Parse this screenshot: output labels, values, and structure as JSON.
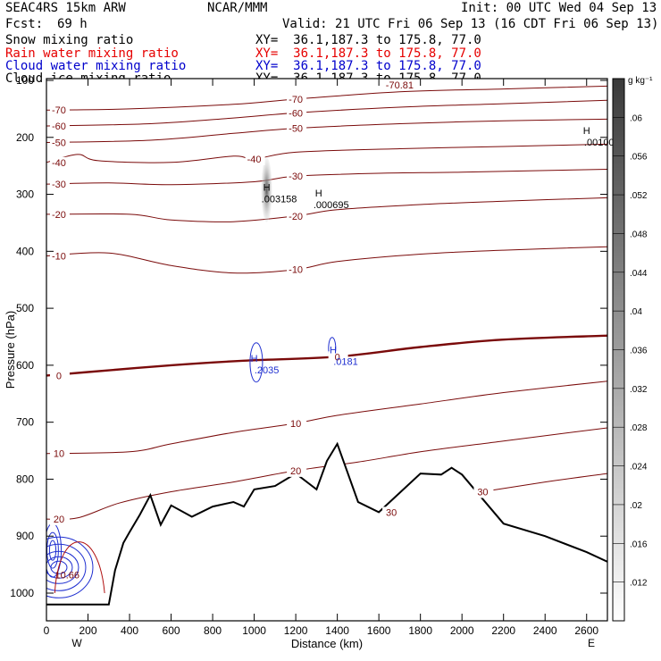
{
  "header": {
    "model": "SEAC4RS 15km ARW",
    "institution": "NCAR/MMM",
    "init": "Init: 00 UTC Wed 04 Sep 13",
    "fcst_label": "Fcst:",
    "fcst_value": "69 h",
    "valid": "Valid: 21 UTC Fri 06 Sep 13 (16 CDT Fri 06 Sep 13)"
  },
  "fields": [
    {
      "name": "Snow mixing ratio",
      "xy": "XY=  36.1,187.3 to 175.8, 77.0",
      "color": "#000000"
    },
    {
      "name": "Rain water mixing ratio",
      "xy": "XY=  36.1,187.3 to 175.8, 77.0",
      "color": "#e60000"
    },
    {
      "name": "Cloud water mixing ratio",
      "xy": "XY=  36.1,187.3 to 175.8, 77.0",
      "color": "#0000cc"
    },
    {
      "name": "Cloud ice mixing ratio",
      "xy": "XY=  36.1,187.3 to 175.8, 77.0",
      "color": "#000000"
    }
  ],
  "colors": {
    "isotherm": "#7a0a0a",
    "cloud_water": "#1f2fd0",
    "terrain": "#000000",
    "rain": "#b01010"
  },
  "chart_data": {
    "type": "contour",
    "xlabel": "Distance (km)",
    "ylabel": "Pressure (hPa)",
    "xlim": [
      0,
      2700
    ],
    "ylim": [
      1000,
      100
    ],
    "x_ticks": [
      "0",
      "200",
      "400",
      "600",
      "800",
      "1000",
      "1200",
      "1400",
      "1600",
      "1800",
      "2000",
      "2200",
      "2400",
      "2600"
    ],
    "y_ticks": [
      "100",
      "200",
      "300",
      "400",
      "500",
      "600",
      "700",
      "800",
      "900",
      "1000"
    ],
    "x_end_labels": {
      "left": "W",
      "right": "E"
    },
    "colorbar": {
      "unit": "g kg⁻¹",
      "labels": [
        ".06",
        ".056",
        ".052",
        ".048",
        ".044",
        ".04",
        ".036",
        ".032",
        ".028",
        ".024",
        ".02",
        ".016",
        ".012"
      ]
    },
    "temperature_contours": [
      {
        "level": -70,
        "p": [
          [
            0,
            152
          ],
          [
            400,
            150
          ],
          [
            900,
            142
          ],
          [
            1200,
            133
          ],
          [
            1700,
            120
          ],
          [
            2200,
            115
          ],
          [
            2700,
            110
          ]
        ]
      },
      {
        "level": -60,
        "p": [
          [
            0,
            180
          ],
          [
            500,
            176
          ],
          [
            900,
            166
          ],
          [
            1200,
            157
          ],
          [
            1700,
            147
          ],
          [
            2200,
            141
          ],
          [
            2700,
            135
          ]
        ]
      },
      {
        "level": -50,
        "p": [
          [
            0,
            209
          ],
          [
            500,
            205
          ],
          [
            900,
            193
          ],
          [
            1200,
            184
          ],
          [
            1700,
            176
          ],
          [
            2200,
            171
          ],
          [
            2700,
            168
          ]
        ]
      },
      {
        "level": -40,
        "p": [
          [
            0,
            244
          ],
          [
            150,
            230
          ],
          [
            250,
            241
          ],
          [
            600,
            244
          ],
          [
            900,
            233
          ],
          [
            1000,
            238
          ],
          [
            1200,
            226
          ],
          [
            1700,
            220
          ],
          [
            2200,
            216
          ],
          [
            2700,
            212
          ]
        ]
      },
      {
        "level": -30,
        "p": [
          [
            0,
            282
          ],
          [
            300,
            280
          ],
          [
            600,
            283
          ],
          [
            1000,
            278
          ],
          [
            1200,
            268
          ],
          [
            1600,
            263
          ],
          [
            2000,
            261
          ],
          [
            2700,
            256
          ]
        ]
      },
      {
        "level": -20,
        "p": [
          [
            0,
            335
          ],
          [
            400,
            335
          ],
          [
            600,
            345
          ],
          [
            900,
            348
          ],
          [
            1200,
            338
          ],
          [
            1400,
            327
          ],
          [
            1800,
            318
          ],
          [
            2200,
            312
          ],
          [
            2700,
            306
          ]
        ]
      },
      {
        "level": -10,
        "p": [
          [
            0,
            408
          ],
          [
            300,
            403
          ],
          [
            600,
            425
          ],
          [
            900,
            438
          ],
          [
            1200,
            432
          ],
          [
            1400,
            418
          ],
          [
            1800,
            405
          ],
          [
            2200,
            398
          ],
          [
            2700,
            392
          ]
        ]
      },
      {
        "level": 0,
        "p": [
          [
            0,
            618
          ],
          [
            200,
            612
          ],
          [
            600,
            600
          ],
          [
            950,
            592
          ],
          [
            1400,
            585
          ],
          [
            1800,
            568
          ],
          [
            2200,
            555
          ],
          [
            2700,
            548
          ]
        ]
      },
      {
        "level": 10,
        "p": [
          [
            0,
            755
          ],
          [
            400,
            752
          ],
          [
            600,
            738
          ],
          [
            900,
            718
          ],
          [
            1200,
            702
          ],
          [
            1400,
            688
          ],
          [
            1800,
            668
          ],
          [
            2200,
            648
          ],
          [
            2700,
            628
          ]
        ]
      },
      {
        "level": 20,
        "p": [
          [
            0,
            870
          ],
          [
            150,
            868
          ],
          [
            350,
            842
          ],
          [
            600,
            822
          ],
          [
            900,
            805
          ],
          [
            1200,
            785
          ],
          [
            1500,
            770
          ],
          [
            1800,
            752
          ],
          [
            2200,
            733
          ],
          [
            2700,
            710
          ]
        ]
      },
      {
        "level": 30,
        "p": [
          [
            1600,
            858
          ],
          [
            1800,
            840
          ],
          [
            2100,
            822
          ],
          [
            2400,
            805
          ],
          [
            2700,
            790
          ]
        ]
      }
    ],
    "terrain_pressure": [
      [
        0,
        1020
      ],
      [
        300,
        1020
      ],
      [
        330,
        960
      ],
      [
        370,
        912
      ],
      [
        400,
        893
      ],
      [
        450,
        862
      ],
      [
        500,
        828
      ],
      [
        550,
        880
      ],
      [
        600,
        846
      ],
      [
        700,
        866
      ],
      [
        800,
        848
      ],
      [
        900,
        840
      ],
      [
        950,
        848
      ],
      [
        1000,
        818
      ],
      [
        1100,
        812
      ],
      [
        1200,
        790
      ],
      [
        1300,
        818
      ],
      [
        1350,
        768
      ],
      [
        1400,
        738
      ],
      [
        1500,
        840
      ],
      [
        1600,
        858
      ],
      [
        1800,
        790
      ],
      [
        1900,
        792
      ],
      [
        1950,
        780
      ],
      [
        2000,
        792
      ],
      [
        2200,
        878
      ],
      [
        2400,
        900
      ],
      [
        2600,
        928
      ],
      [
        2700,
        945
      ]
    ],
    "extrema_annotations": [
      {
        "label": "H",
        "value": ".003158",
        "x": 1060,
        "p": 300
      },
      {
        "label": "H",
        "value": ".000695",
        "x": 1310,
        "p": 310
      },
      {
        "label": "H",
        "value": ".00100",
        "x": 2600,
        "p": 200
      },
      {
        "label": "H",
        "value": ".2035",
        "x": 1000,
        "p": 600
      },
      {
        "label": "H",
        "value": ".0181",
        "x": 1380,
        "p": 585
      },
      {
        "label": "",
        "value": "10.66",
        "x": 100,
        "p": 960
      },
      {
        "label": "",
        "value": "-70.81",
        "x": 1700,
        "p": 100
      }
    ]
  }
}
